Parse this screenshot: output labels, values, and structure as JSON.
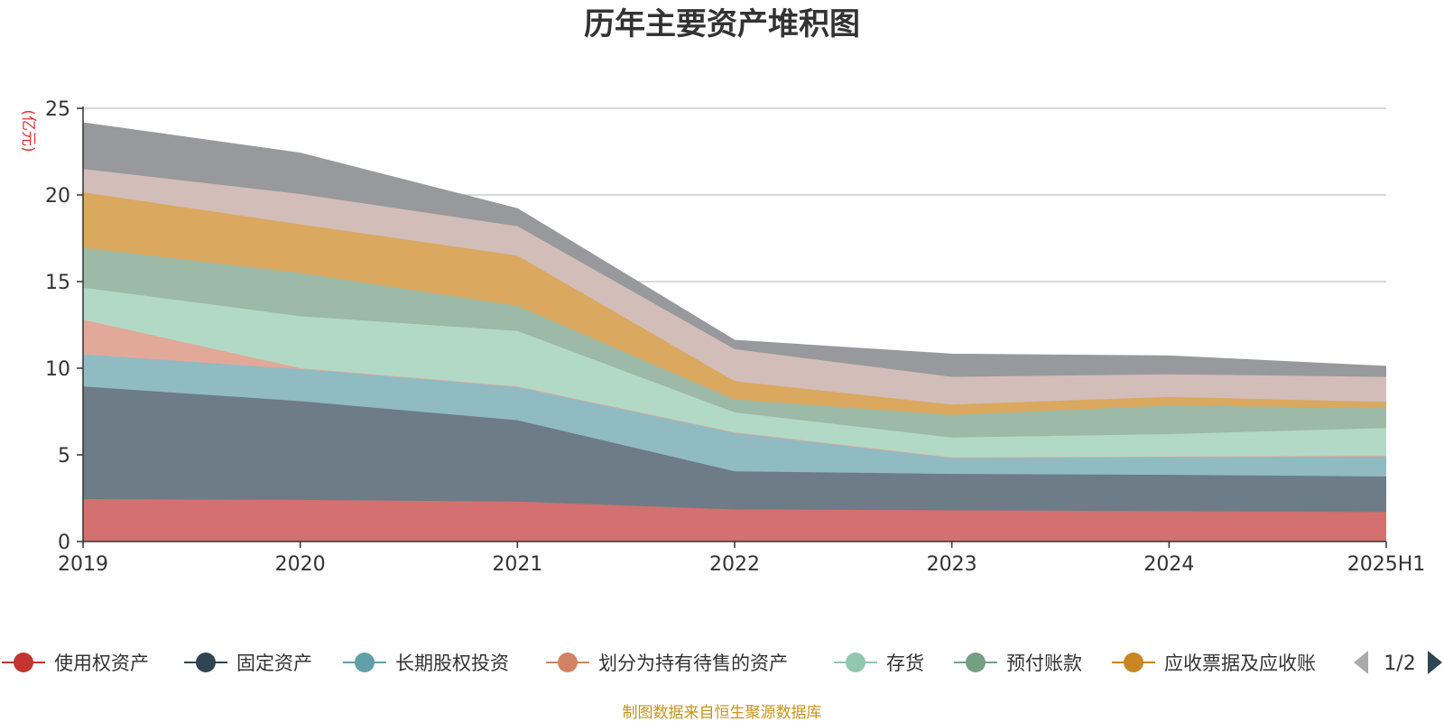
{
  "chart_data": {
    "type": "area",
    "stacked": true,
    "title": "历年主要资产堆积图",
    "unit_label": "(亿元)",
    "categories": [
      "2019",
      "2020",
      "2021",
      "2022",
      "2023",
      "2024",
      "2025H1"
    ],
    "y_ticks": [
      "0",
      "5",
      "10",
      "15",
      "20",
      "25"
    ],
    "ylim": [
      0,
      25
    ],
    "grid": true,
    "series": [
      {
        "name": "使用权资产",
        "color": "#c23531",
        "fill": "#d4706f",
        "values": [
          2.45,
          2.4,
          2.3,
          1.85,
          1.8,
          1.75,
          1.7
        ]
      },
      {
        "name": "固定资产",
        "color": "#2f4554",
        "fill": "#6e7c87",
        "values": [
          6.5,
          5.7,
          4.7,
          2.2,
          2.1,
          2.1,
          2.05
        ]
      },
      {
        "name": "长期股权投资",
        "color": "#61a0a8",
        "fill": "#90bbc2",
        "values": [
          1.85,
          1.85,
          1.95,
          2.25,
          0.95,
          1.05,
          1.15
        ]
      },
      {
        "name": "划分为持有待售的资产",
        "color": "#d48265",
        "fill": "#e3a998",
        "values": [
          2.0,
          0.05,
          0,
          0,
          0,
          0,
          0.05
        ]
      },
      {
        "name": "存货",
        "color": "#91c7ae",
        "fill": "#b2d9c6",
        "values": [
          1.85,
          3.0,
          3.2,
          1.15,
          1.15,
          1.3,
          1.6
        ]
      },
      {
        "name": "预付账款",
        "color": "#749f83",
        "fill": "#9db9a7",
        "values": [
          2.3,
          2.5,
          1.45,
          0.75,
          1.3,
          1.65,
          1.15
        ]
      },
      {
        "name": "应收票据及应收账",
        "color": "#ca8622",
        "fill": "#daa95f",
        "values": [
          3.2,
          2.8,
          2.9,
          1.05,
          0.6,
          0.5,
          0.35
        ]
      },
      {
        "name": "",
        "color": "#bda29a",
        "fill": "#d2bdb8",
        "values": [
          1.35,
          1.75,
          1.7,
          1.85,
          1.6,
          1.3,
          1.45
        ]
      },
      {
        "name": "",
        "color": "#6e7074",
        "fill": "#98999c",
        "values": [
          2.65,
          2.35,
          1.0,
          0.5,
          1.3,
          1.05,
          0.6
        ]
      }
    ]
  },
  "legend": {
    "page": "1/2",
    "items": [
      {
        "name": "使用权资产",
        "color": "#c23531"
      },
      {
        "name": "固定资产",
        "color": "#2f4554"
      },
      {
        "name": "长期股权投资",
        "color": "#61a0a8"
      },
      {
        "name": "划分为持有待售的资产",
        "color": "#d48265"
      },
      {
        "name": "存货",
        "color": "#91c7ae"
      },
      {
        "name": "预付账款",
        "color": "#749f83"
      },
      {
        "name": "应收票据及应收账",
        "color": "#ca8622"
      }
    ]
  },
  "footer": {
    "source": "制图数据来自恒生聚源数据库"
  }
}
